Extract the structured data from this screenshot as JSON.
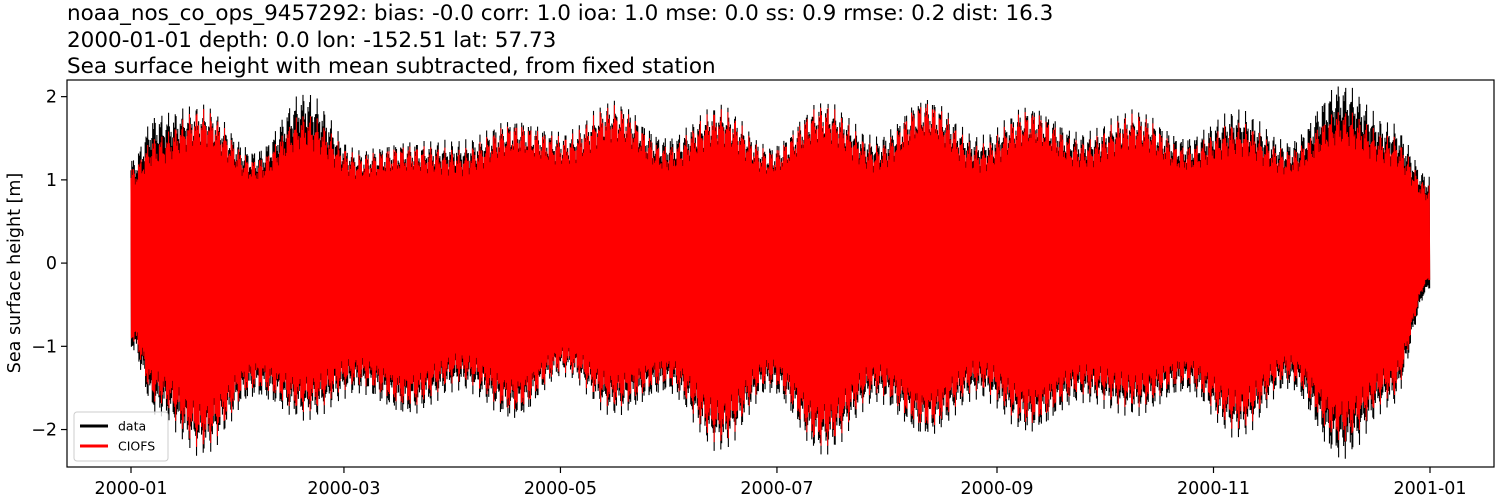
{
  "figure": {
    "title_lines": [
      "noaa_nos_co_ops_9457292: bias: -0.0  corr: 1.0  ioa: 1.0  mse: 0.0  ss: 0.9  rmse: 0.2  dist: 16.3",
      "2000-01-01 depth: 0.0 lon: -152.51 lat: 57.73",
      "Sea surface height with mean subtracted, from fixed station"
    ]
  },
  "chart_data": {
    "type": "line",
    "ylabel": "Sea surface height [m]",
    "xlabel": "",
    "x_start": "2000-01-01",
    "x_end": "2001-01-01",
    "xlim": [
      "2000-01-01",
      "2001-01-01"
    ],
    "ylim": [
      -2.45,
      2.2
    ],
    "x_ticks": [
      "2000-01",
      "2000-03",
      "2000-05",
      "2000-07",
      "2000-09",
      "2000-11",
      "2001-01"
    ],
    "y_ticks": [
      -2,
      -1,
      0,
      1,
      2
    ],
    "y_tick_labels": [
      "−2",
      "−1",
      "0",
      "1",
      "2"
    ],
    "grid": false,
    "legend": {
      "position": "lower-left"
    },
    "series": [
      {
        "name": "data",
        "color": "#000000",
        "envelope_dates": [
          "2000-01-01",
          "2000-01-08",
          "2000-01-21",
          "2000-02-05",
          "2000-02-19",
          "2000-03-05",
          "2000-03-19",
          "2000-04-03",
          "2000-04-18",
          "2000-05-02",
          "2000-05-16",
          "2000-05-31",
          "2000-06-15",
          "2000-06-29",
          "2000-07-14",
          "2000-07-29",
          "2000-08-12",
          "2000-08-27",
          "2000-09-10",
          "2000-09-25",
          "2000-10-10",
          "2000-10-24",
          "2000-11-08",
          "2000-11-22",
          "2000-12-07",
          "2000-12-21",
          "2001-01-01"
        ],
        "envelope_max": [
          1.2,
          1.7,
          1.8,
          1.3,
          1.95,
          1.3,
          1.4,
          1.4,
          1.65,
          1.5,
          1.85,
          1.45,
          1.8,
          1.35,
          1.85,
          1.45,
          1.9,
          1.45,
          1.8,
          1.5,
          1.75,
          1.45,
          1.75,
          1.4,
          2.05,
          1.6,
          1.0
        ],
        "envelope_min": [
          -1.0,
          -1.75,
          -2.2,
          -1.55,
          -1.8,
          -1.5,
          -1.75,
          -1.45,
          -1.8,
          -1.3,
          -1.75,
          -1.5,
          -2.15,
          -1.5,
          -2.2,
          -1.6,
          -2.0,
          -1.55,
          -1.95,
          -1.6,
          -1.75,
          -1.5,
          -2.0,
          -1.45,
          -2.25,
          -1.65,
          -0.3
        ]
      },
      {
        "name": "CIOFS",
        "color": "#ff0000",
        "envelope_dates": [
          "2000-01-01",
          "2000-01-08",
          "2000-01-21",
          "2000-02-05",
          "2000-02-19",
          "2000-03-05",
          "2000-03-19",
          "2000-04-03",
          "2000-04-18",
          "2000-05-02",
          "2000-05-16",
          "2000-05-31",
          "2000-06-15",
          "2000-06-29",
          "2000-07-14",
          "2000-07-29",
          "2000-08-12",
          "2000-08-27",
          "2000-09-10",
          "2000-09-25",
          "2000-10-10",
          "2000-10-24",
          "2000-11-08",
          "2000-11-22",
          "2000-12-07",
          "2000-12-21",
          "2001-01-01"
        ],
        "envelope_max": [
          1.1,
          1.45,
          1.75,
          1.2,
          1.7,
          1.25,
          1.35,
          1.3,
          1.6,
          1.45,
          1.8,
          1.35,
          1.75,
          1.3,
          1.8,
          1.35,
          1.85,
          1.35,
          1.75,
          1.4,
          1.7,
          1.35,
          1.6,
          1.3,
          1.75,
          1.45,
          0.9
        ],
        "envelope_min": [
          -0.9,
          -1.6,
          -2.1,
          -1.45,
          -1.7,
          -1.4,
          -1.65,
          -1.35,
          -1.7,
          -1.25,
          -1.65,
          -1.4,
          -2.05,
          -1.4,
          -2.1,
          -1.5,
          -1.9,
          -1.45,
          -1.85,
          -1.5,
          -1.65,
          -1.4,
          -1.9,
          -1.35,
          -2.05,
          -1.55,
          -0.2
        ]
      }
    ]
  }
}
